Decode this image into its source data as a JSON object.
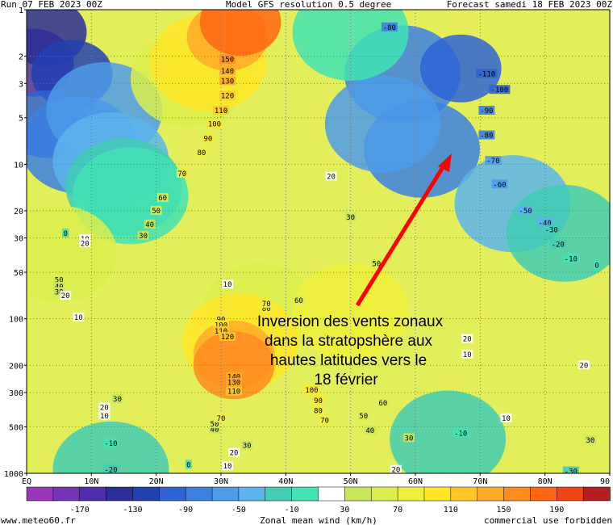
{
  "header": {
    "run": "Run 07 FEB 2023 00Z",
    "model": "Model GFS resolution 0.5 degree",
    "forecast": "Forecast samedi 18 FEB 2023 00Z"
  },
  "footer": {
    "site": "www.meteo60.fr",
    "usage": "commercial use forbidden"
  },
  "annotation": {
    "lines": [
      "Inversion des vents zonaux",
      "dans la stratopshère aux",
      "hautes latitudes vers le",
      "18 février"
    ],
    "arrow_color": "#ff0000"
  },
  "chart_data": {
    "type": "heatmap",
    "title": "Zonal mean wind (km/h)",
    "x_ticks": [
      "EQ",
      "10N",
      "20N",
      "30N",
      "40N",
      "50N",
      "60N",
      "70N",
      "80N",
      "90"
    ],
    "x_range": [
      0,
      90
    ],
    "y_scale": "log",
    "y_range": [
      1,
      1000
    ],
    "y_ticks": [
      1,
      2,
      3,
      5,
      10,
      20,
      30,
      50,
      100,
      200,
      300,
      500,
      1000
    ],
    "colorbar": {
      "ticks": [
        "-170",
        "-130",
        "-90",
        "-50",
        "-10",
        "30",
        "70",
        "110",
        "150",
        "190"
      ],
      "colors": [
        "#9a37b8",
        "#7233b5",
        "#4d2fab",
        "#2b2e98",
        "#2141b0",
        "#2f63d5",
        "#3c80e2",
        "#4e9be9",
        "#5cb4ec",
        "#42cdb4",
        "#42e2b4",
        "#ffffff",
        "#c8e65a",
        "#dcee4e",
        "#f0f03c",
        "#ffe628",
        "#ffc828",
        "#ffaa28",
        "#ff8c1e",
        "#ff6614",
        "#f04614",
        "#b41e1e"
      ]
    },
    "contour_labels": [
      {
        "v": "150",
        "lat": 31,
        "p": 2.1
      },
      {
        "v": "140",
        "lat": 31,
        "p": 2.5
      },
      {
        "v": "130",
        "lat": 31,
        "p": 2.9
      },
      {
        "v": "120",
        "lat": 31,
        "p": 3.6
      },
      {
        "v": "110",
        "lat": 30,
        "p": 4.5
      },
      {
        "v": "100",
        "lat": 29,
        "p": 5.5
      },
      {
        "v": "90",
        "lat": 28,
        "p": 6.8
      },
      {
        "v": "80",
        "lat": 27,
        "p": 8.4
      },
      {
        "v": "70",
        "lat": 24,
        "p": 11.5
      },
      {
        "v": "60",
        "lat": 21,
        "p": 16.5
      },
      {
        "v": "50",
        "lat": 20,
        "p": 20
      },
      {
        "v": "40",
        "lat": 19,
        "p": 24.5
      },
      {
        "v": "30",
        "lat": 18,
        "p": 29
      },
      {
        "v": "20",
        "lat": 47,
        "p": 12
      },
      {
        "v": "30",
        "lat": 50,
        "p": 22
      },
      {
        "v": "50",
        "lat": 54,
        "p": 44
      },
      {
        "v": "60",
        "lat": 42,
        "p": 76
      },
      {
        "v": "10",
        "lat": 31,
        "p": 60
      },
      {
        "v": "0",
        "lat": 6,
        "p": 28
      },
      {
        "v": "10",
        "lat": 9,
        "p": 30.5
      },
      {
        "v": "20",
        "lat": 9,
        "p": 32.5
      },
      {
        "v": "50",
        "lat": 5,
        "p": 56
      },
      {
        "v": "40",
        "lat": 5,
        "p": 62
      },
      {
        "v": "30",
        "lat": 5,
        "p": 67
      },
      {
        "v": "20",
        "lat": 6,
        "p": 71
      },
      {
        "v": "10",
        "lat": 8,
        "p": 98
      },
      {
        "v": "80",
        "lat": 37,
        "p": 86
      },
      {
        "v": "70",
        "lat": 37,
        "p": 80
      },
      {
        "v": "90",
        "lat": 30,
        "p": 101
      },
      {
        "v": "100",
        "lat": 30,
        "p": 110
      },
      {
        "v": "110",
        "lat": 30,
        "p": 120
      },
      {
        "v": "120",
        "lat": 31,
        "p": 131
      },
      {
        "v": "140",
        "lat": 32,
        "p": 237
      },
      {
        "v": "130",
        "lat": 32,
        "p": 259
      },
      {
        "v": "110",
        "lat": 32,
        "p": 295
      },
      {
        "v": "100",
        "lat": 44,
        "p": 290
      },
      {
        "v": "90",
        "lat": 45,
        "p": 338
      },
      {
        "v": "80",
        "lat": 45,
        "p": 393
      },
      {
        "v": "70",
        "lat": 46,
        "p": 455
      },
      {
        "v": "60",
        "lat": 55,
        "p": 352
      },
      {
        "v": "50",
        "lat": 52,
        "p": 425
      },
      {
        "v": "40",
        "lat": 53,
        "p": 530
      },
      {
        "v": "30",
        "lat": 59,
        "p": 592
      },
      {
        "v": "20",
        "lat": 32,
        "p": 735
      },
      {
        "v": "30",
        "lat": 34,
        "p": 660
      },
      {
        "v": "40",
        "lat": 29,
        "p": 520
      },
      {
        "v": "50",
        "lat": 29,
        "p": 480
      },
      {
        "v": "70",
        "lat": 30,
        "p": 440
      },
      {
        "v": "30",
        "lat": 14,
        "p": 330
      },
      {
        "v": "20",
        "lat": 12,
        "p": 375
      },
      {
        "v": "10",
        "lat": 12,
        "p": 425
      },
      {
        "v": "-10",
        "lat": 13,
        "p": 640
      },
      {
        "v": "-20",
        "lat": 13,
        "p": 945
      },
      {
        "v": "0",
        "lat": 25,
        "p": 880
      },
      {
        "v": "10",
        "lat": 31,
        "p": 900
      },
      {
        "v": "20",
        "lat": 57,
        "p": 950
      },
      {
        "v": "-80",
        "lat": 56,
        "p": 1.3
      },
      {
        "v": "-110",
        "lat": 71,
        "p": 2.6
      },
      {
        "v": "-100",
        "lat": 73,
        "p": 3.3
      },
      {
        "v": "-90",
        "lat": 71,
        "p": 4.5
      },
      {
        "v": "-80",
        "lat": 71,
        "p": 6.5
      },
      {
        "v": "-70",
        "lat": 72,
        "p": 9.5
      },
      {
        "v": "-60",
        "lat": 73,
        "p": 13.5
      },
      {
        "v": "-50",
        "lat": 77,
        "p": 20
      },
      {
        "v": "-40",
        "lat": 80,
        "p": 24
      },
      {
        "v": "-30",
        "lat": 81,
        "p": 26.5
      },
      {
        "v": "-20",
        "lat": 82,
        "p": 33
      },
      {
        "v": "-10",
        "lat": 84,
        "p": 41
      },
      {
        "v": "0",
        "lat": 88,
        "p": 45
      },
      {
        "v": "20",
        "lat": 68,
        "p": 135
      },
      {
        "v": "10",
        "lat": 68,
        "p": 170
      },
      {
        "v": "20",
        "lat": 86,
        "p": 200
      },
      {
        "v": "10",
        "lat": 74,
        "p": 440
      },
      {
        "v": "-10",
        "lat": 67,
        "p": 550
      },
      {
        "v": "30",
        "lat": 87,
        "p": 610
      },
      {
        "v": "-30",
        "lat": 84,
        "p": 970
      }
    ],
    "isotachs": [
      {
        "v": -170,
        "lat": 1,
        "p": 2.2
      },
      {
        "v": -150,
        "lat": 3,
        "p": 1.4
      },
      {
        "v": -130,
        "lat": 7,
        "p": 2.6
      },
      {
        "v": -110,
        "lat": 3,
        "p": 5.5
      },
      {
        "v": -90,
        "lat": 8,
        "p": 7.5
      },
      {
        "v": -70,
        "lat": 12,
        "p": 4.5
      },
      {
        "v": -50,
        "lat": 13,
        "p": 9.5
      },
      {
        "v": -30,
        "lat": 15,
        "p": 14
      },
      {
        "v": -10,
        "lat": 16,
        "p": 16
      },
      {
        "v": 60,
        "lat": 25,
        "p": 2.8
      },
      {
        "v": 100,
        "lat": 28,
        "p": 2.2
      },
      {
        "v": 140,
        "lat": 31,
        "p": 1.5
      },
      {
        "v": 180,
        "lat": 33,
        "p": 1.2
      },
      {
        "v": -80,
        "lat": 58,
        "p": 2.6
      },
      {
        "v": -110,
        "lat": 67,
        "p": 2.4
      },
      {
        "v": -90,
        "lat": 61,
        "p": 8
      },
      {
        "v": -60,
        "lat": 55,
        "p": 5.5
      },
      {
        "v": -40,
        "lat": 75,
        "p": 18
      },
      {
        "v": -20,
        "lat": 83,
        "p": 28
      },
      {
        "v": -10,
        "lat": 50,
        "p": 1.4
      },
      {
        "v": 50,
        "lat": 5,
        "p": 38
      },
      {
        "v": 60,
        "lat": 36,
        "p": 90
      },
      {
        "v": 100,
        "lat": 33,
        "p": 140
      },
      {
        "v": 140,
        "lat": 32,
        "p": 170
      },
      {
        "v": 150,
        "lat": 32,
        "p": 200
      },
      {
        "v": 70,
        "lat": 50,
        "p": 90
      },
      {
        "v": -15,
        "lat": 65,
        "p": 600
      },
      {
        "v": -15,
        "lat": 13,
        "p": 950
      }
    ]
  }
}
